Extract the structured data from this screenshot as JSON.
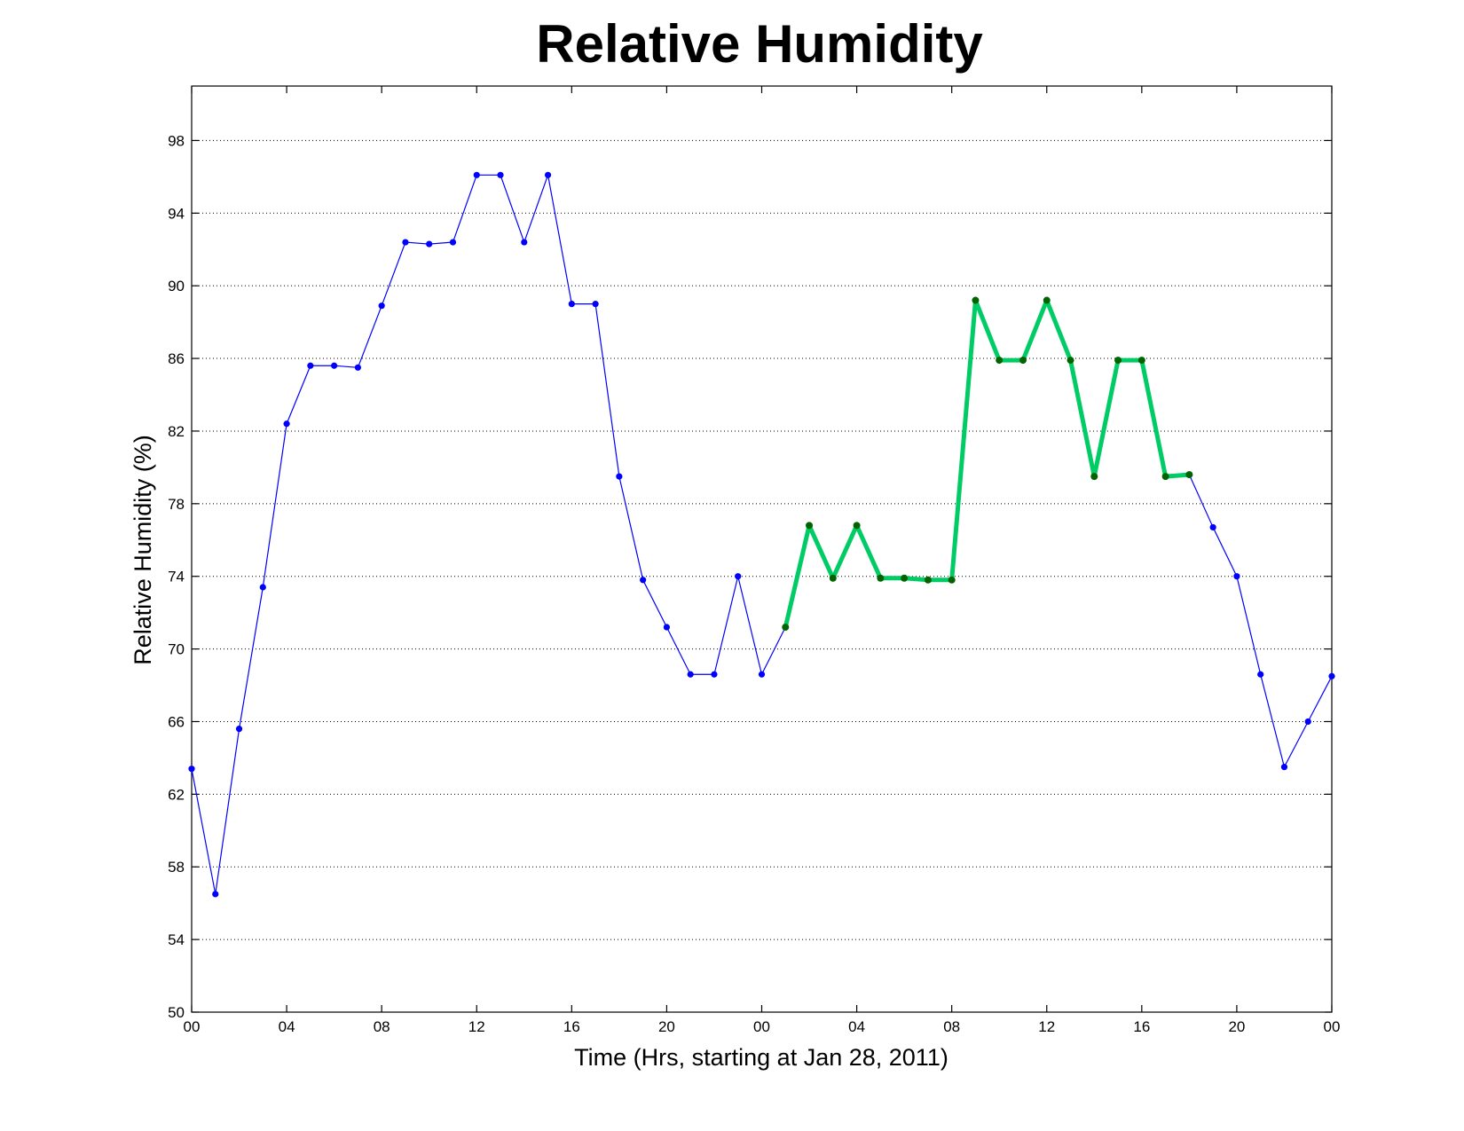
{
  "chart_data": {
    "type": "line",
    "title": "Relative Humidity",
    "xlabel": "Time (Hrs, starting at Jan 28, 2011)",
    "ylabel": "Relative Humidity (%)",
    "xlim": [
      0,
      48
    ],
    "ylim": [
      50,
      101
    ],
    "grid": "horizontal dotted",
    "x_ticks": [
      {
        "x": 0,
        "label": "00"
      },
      {
        "x": 4,
        "label": "04"
      },
      {
        "x": 8,
        "label": "08"
      },
      {
        "x": 12,
        "label": "12"
      },
      {
        "x": 16,
        "label": "16"
      },
      {
        "x": 20,
        "label": "20"
      },
      {
        "x": 24,
        "label": "00"
      },
      {
        "x": 28,
        "label": "04"
      },
      {
        "x": 32,
        "label": "08"
      },
      {
        "x": 36,
        "label": "12"
      },
      {
        "x": 40,
        "label": "16"
      },
      {
        "x": 44,
        "label": "20"
      },
      {
        "x": 48,
        "label": "00"
      }
    ],
    "y_ticks": [
      "50",
      "54",
      "58",
      "62",
      "66",
      "70",
      "74",
      "78",
      "82",
      "86",
      "90",
      "94",
      "98"
    ],
    "series": [
      {
        "style": "thin",
        "line_color": "#0000ff",
        "marker_color": "#0000ff",
        "x": [
          0,
          1,
          2,
          3,
          4,
          5,
          6,
          7,
          8,
          9,
          10,
          11,
          12,
          13,
          14,
          15,
          16,
          17,
          18,
          19,
          20,
          21,
          22,
          23,
          24,
          25,
          26,
          27,
          28,
          29,
          30,
          31,
          32,
          33,
          34,
          35,
          36,
          37,
          38,
          39,
          40,
          41,
          42,
          43,
          44,
          45,
          46,
          47,
          48
        ],
        "y": [
          63.4,
          56.5,
          65.6,
          73.4,
          82.4,
          85.6,
          85.6,
          85.5,
          88.9,
          92.4,
          92.3,
          92.4,
          96.1,
          96.1,
          92.4,
          96.1,
          89.0,
          89.0,
          79.5,
          73.8,
          71.2,
          68.6,
          68.6,
          74.0,
          68.6,
          71.2,
          76.8,
          73.9,
          76.8,
          73.9,
          73.9,
          73.8,
          73.8,
          89.2,
          85.9,
          85.9,
          89.2,
          85.9,
          79.5,
          85.9,
          85.9,
          79.5,
          79.6,
          76.7,
          74.0,
          68.6,
          63.5,
          66.0,
          68.5
        ]
      },
      {
        "style": "thick",
        "line_color": "#00cc66",
        "marker_color": "#006400",
        "x": [
          25,
          26,
          27,
          28,
          29,
          30,
          31,
          32,
          33,
          34,
          35,
          36,
          37,
          38,
          39,
          40,
          41,
          42
        ],
        "y": [
          71.2,
          76.8,
          73.9,
          76.8,
          73.9,
          73.9,
          73.8,
          73.8,
          89.2,
          85.9,
          85.9,
          89.2,
          85.9,
          79.5,
          85.9,
          85.9,
          79.5,
          79.6
        ]
      }
    ]
  }
}
